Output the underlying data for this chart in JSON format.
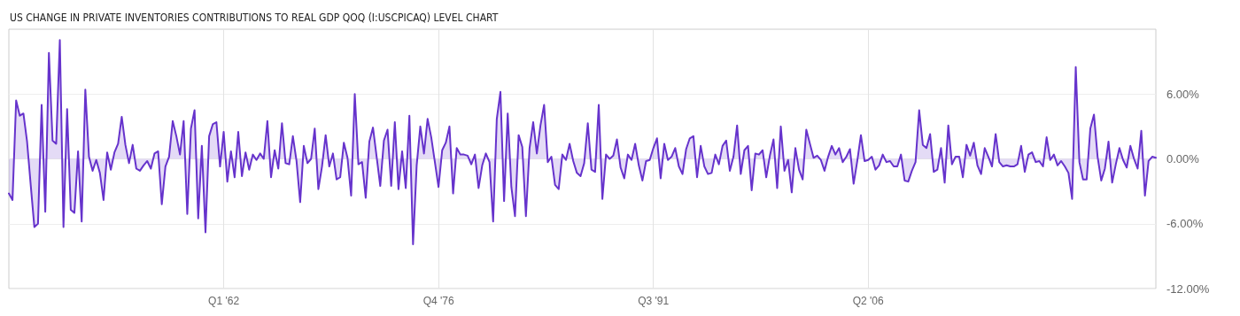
{
  "chart_data": {
    "type": "area",
    "title": "US CHANGE IN PRIVATE INVENTORIES CONTRIBUTIONS TO REAL GDP QOQ (I:USCPICAQ) LEVEL CHART",
    "categories": [
      null,
      null,
      null,
      null,
      null,
      null,
      null,
      null,
      null,
      null,
      null,
      null,
      null,
      null,
      null,
      null,
      null,
      null,
      null,
      null,
      null,
      null,
      null,
      null,
      null,
      null,
      null,
      null,
      null,
      null,
      null,
      null,
      null,
      null,
      null,
      null,
      null,
      null,
      null,
      null,
      null,
      null,
      null,
      null,
      null,
      null,
      null,
      null,
      null,
      null,
      null,
      null,
      null,
      null,
      null,
      null,
      null,
      null,
      null,
      "Q1 '62",
      null,
      null,
      null,
      null,
      null,
      null,
      null,
      null,
      null,
      null,
      null,
      null,
      null,
      null,
      null,
      null,
      null,
      null,
      null,
      null,
      null,
      null,
      null,
      null,
      null,
      null,
      null,
      null,
      null,
      null,
      null,
      null,
      null,
      null,
      null,
      null,
      null,
      null,
      null,
      null,
      null,
      null,
      null,
      null,
      null,
      null,
      null,
      null,
      null,
      null,
      null,
      null,
      null,
      null,
      null,
      null,
      null,
      null,
      "Q4 '76",
      null,
      null,
      null,
      null,
      null,
      null,
      null,
      null,
      null,
      null,
      null,
      null,
      null,
      null,
      null,
      null,
      null,
      null,
      null,
      null,
      null,
      null,
      null,
      null,
      null,
      null,
      null,
      null,
      null,
      null,
      null,
      null,
      null,
      null,
      null,
      null,
      null,
      null,
      null,
      null,
      null,
      null,
      null,
      null,
      null,
      null,
      null,
      null,
      null,
      null,
      null,
      null,
      null,
      null,
      null,
      null,
      null,
      null,
      "Q3 '91",
      null,
      null,
      null,
      null,
      null,
      null,
      null,
      null,
      null,
      null,
      null,
      null,
      null,
      null,
      null,
      null,
      null,
      null,
      null,
      null,
      null,
      null,
      null,
      null,
      null,
      null,
      null,
      null,
      null,
      null,
      null,
      null,
      null,
      null,
      null,
      null,
      null,
      null,
      null,
      null,
      null,
      null,
      null,
      null,
      null,
      null,
      null,
      null,
      null,
      null,
      null,
      null,
      null,
      null,
      null,
      null,
      null,
      null,
      "Q2 '06",
      null,
      null,
      null,
      null,
      null,
      null,
      null,
      null,
      null,
      null,
      null,
      null,
      null,
      null,
      null,
      null,
      null,
      null,
      null,
      null,
      null,
      null,
      null,
      null,
      null,
      null,
      null,
      null,
      null,
      null,
      null,
      null,
      null,
      null,
      null,
      null,
      null,
      null,
      null,
      null,
      null,
      null,
      null,
      null,
      null,
      null,
      null,
      null,
      null,
      null,
      null,
      null,
      null,
      null,
      null,
      null,
      null,
      null,
      null,
      null,
      null,
      null,
      null,
      null,
      null,
      null,
      null,
      null,
      null,
      null,
      null,
      null,
      null,
      null,
      null,
      null,
      null,
      null,
      null
    ],
    "series": [
      {
        "color": "#6633cc",
        "values": [
          -3.2,
          -3.8,
          5.4,
          4.0,
          4.2,
          1.6,
          -2.4,
          -6.3,
          -6.0,
          5.0,
          -4.9,
          9.8,
          1.7,
          1.4,
          11.0,
          -6.3,
          4.6,
          -4.7,
          -5.0,
          0.7,
          -5.8,
          6.4,
          0.2,
          -1.1,
          -0.1,
          -1.3,
          -3.8,
          0.6,
          -1.0,
          0.6,
          1.4,
          3.9,
          1.3,
          -0.4,
          1.3,
          -0.9,
          -1.1,
          -0.6,
          -0.2,
          -0.9,
          0.5,
          0.7,
          -4.2,
          -0.7,
          0.2,
          3.5,
          2.1,
          0.4,
          3.5,
          -5.1,
          2.8,
          4.5,
          -5.5,
          1.2,
          -6.8,
          2.1,
          3.2,
          3.4,
          -0.7,
          2.5,
          -2.1,
          0.7,
          -1.7,
          2.5,
          -1.6,
          0.6,
          -1.0,
          0.4,
          -0.1,
          0.5,
          0,
          3.5,
          -1.7,
          0.8,
          -0.9,
          3.3,
          -0.4,
          -0.5,
          2.1,
          -0.2,
          -4.0,
          1.2,
          -0.4,
          0,
          2.8,
          -2.8,
          -0.7,
          2.2,
          -0.7,
          0.5,
          -1.9,
          -1.7,
          1.5,
          0.1,
          -3.4,
          6.0,
          -0.5,
          -0.3,
          -3.6,
          1.6,
          2.9,
          0.2,
          -2.5,
          1.7,
          2.7,
          -2.5,
          3.4,
          -2.8,
          0.7,
          -2.7,
          4.0,
          -7.9,
          -0.6,
          3.0,
          0.5,
          3.7,
          2.0,
          -0.3,
          -2.6,
          0.8,
          1.5,
          3.0,
          -3.2,
          1.0,
          0.4,
          0.4,
          0.3,
          -0.5,
          0.4,
          -2.7,
          -0.6,
          0.5,
          -0.3,
          -5.8,
          3.7,
          6.2,
          -3.9,
          4.2,
          -2.6,
          -5.3,
          2.2,
          1.1,
          -5.3,
          1.0,
          3.4,
          0.5,
          3.1,
          5.0,
          -0.3,
          0.2,
          -2.4,
          -2.8,
          0.4,
          -0.1,
          1.4,
          -0.2,
          -1.3,
          -1.6,
          -0.4,
          3.3,
          -1.0,
          -1.2,
          5.0,
          -3.7,
          0.4,
          0,
          0.3,
          1.8,
          -0.8,
          -1.8,
          0.4,
          -0.1,
          1.4,
          -0.6,
          -2.0,
          -0.2,
          -0.1,
          1.0,
          1.9,
          -1.8,
          1.4,
          -0.1,
          0.2,
          1.0,
          -0.7,
          -1.4,
          0.9,
          1.9,
          2.1,
          -1.7,
          1.2,
          -0.7,
          -1.4,
          -1.3,
          0.4,
          -0.5,
          1.2,
          1.7,
          -1.1,
          0.2,
          3.1,
          -1.4,
          0.8,
          1.2,
          -2.9,
          0.5,
          0.4,
          0.8,
          -1.7,
          0.3,
          1.8,
          -2.7,
          3.0,
          -1.1,
          -0.1,
          -3.1,
          1.0,
          -1.0,
          -1.9,
          2.7,
          1.4,
          0.1,
          0.3,
          -0.1,
          -1.1,
          0.2,
          1.2,
          0.4,
          1.0,
          -0.3,
          0.2,
          0.9,
          -2.3,
          -0.2,
          2.2,
          -0.2,
          -0.1,
          0.2,
          -1.0,
          -0.6,
          0.4,
          -0.3,
          -0.2,
          -0.7,
          -0.7,
          0.4,
          -2.0,
          -2.1,
          -1.1,
          -0.3,
          4.5,
          1.3,
          1.0,
          2.3,
          -1.2,
          -1.0,
          1.0,
          -2.2,
          3.1,
          -0.5,
          0.2,
          0.2,
          -1.7,
          1.3,
          0.3,
          1.5,
          -0.6,
          -1.4,
          1.0,
          0.2,
          -0.7,
          2.3,
          -0.3,
          -0.7,
          -0.6,
          -0.7,
          -0.7,
          -0.5,
          1.2,
          -1.2,
          0.4,
          0.6,
          -0.3,
          -0.2,
          -0.7,
          2.0,
          -0.1,
          0.4,
          -0.6,
          -0.2,
          -0.7,
          -1.3,
          -3.7,
          8.5,
          -0.3,
          -1.9,
          -1.9,
          2.8,
          4.1,
          0.2,
          -2.0,
          -0.9,
          1.6,
          -2.2,
          -0.5,
          1.0,
          -0.1,
          -0.8,
          1.2,
          0,
          -0.9,
          2.6,
          -3.4,
          -0.2,
          0.2,
          0.1
        ]
      }
    ],
    "ylim": [
      -12,
      12
    ],
    "yticks": [
      {
        "value": -12,
        "label": "-12.00%"
      },
      {
        "value": -6,
        "label": "-6.00%"
      },
      {
        "value": 0,
        "label": "0.00%"
      },
      {
        "value": 6,
        "label": "6.00%"
      }
    ],
    "grid": true,
    "marker": "none"
  }
}
